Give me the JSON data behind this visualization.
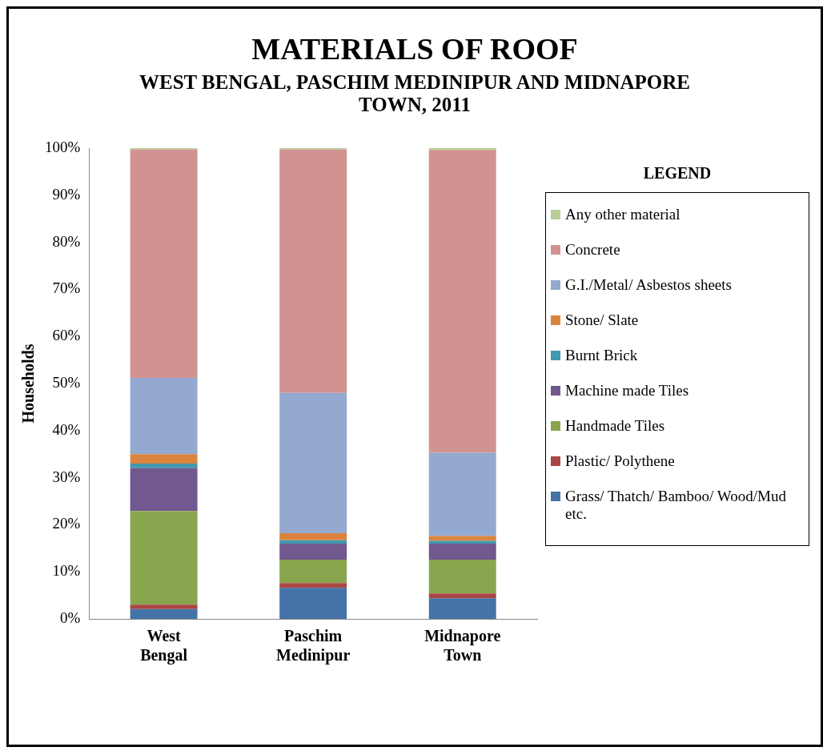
{
  "chart_data": {
    "type": "bar",
    "title": "MATERIALS OF ROOF",
    "subtitle": "WEST BENGAL, PASCHIM MEDINIPUR  AND MIDNAPORE TOWN, 2011",
    "ylabel": "Households",
    "legend_title": "LEGEND",
    "categories": [
      "West Bengal",
      "Paschim Medinipur",
      "Midnapore Town"
    ],
    "stacked": true,
    "ylim": [
      0,
      100
    ],
    "yticks": [
      {
        "value": 0,
        "label": "0%"
      },
      {
        "value": 10,
        "label": "10%"
      },
      {
        "value": 20,
        "label": "20%"
      },
      {
        "value": 30,
        "label": "30%"
      },
      {
        "value": 40,
        "label": "40%"
      },
      {
        "value": 50,
        "label": "50%"
      },
      {
        "value": 60,
        "label": "60%"
      },
      {
        "value": 70,
        "label": "70%"
      },
      {
        "value": 80,
        "label": "80%"
      },
      {
        "value": 90,
        "label": "90%"
      },
      {
        "value": 100,
        "label": "100%"
      }
    ],
    "grid": false,
    "legend": "right",
    "series": [
      {
        "name": "Grass/ Thatch/ Bamboo/ Wood/Mud etc.",
        "color": "#4572a7",
        "values": [
          2.1,
          6.6,
          4.4
        ]
      },
      {
        "name": "Plastic/ Polythene",
        "color": "#aa4643",
        "values": [
          0.9,
          1.0,
          1.0
        ]
      },
      {
        "name": "Handmade Tiles",
        "color": "#89a54e",
        "values": [
          19.9,
          5.0,
          7.2
        ]
      },
      {
        "name": "Machine made Tiles",
        "color": "#71588f",
        "values": [
          9.1,
          3.4,
          3.4
        ]
      },
      {
        "name": "Burnt Brick",
        "color": "#4198af",
        "values": [
          1.0,
          0.7,
          0.6
        ]
      },
      {
        "name": "Stone/ Slate",
        "color": "#db843d",
        "values": [
          2.0,
          1.5,
          1.0
        ]
      },
      {
        "name": "G.I./Metal/ Asbestos sheets",
        "color": "#93a9cf",
        "values": [
          16.2,
          29.8,
          17.7
        ]
      },
      {
        "name": "Concrete",
        "color": "#d19392",
        "values": [
          48.5,
          51.7,
          64.3
        ]
      },
      {
        "name": "Any other material",
        "color": "#b9cd96",
        "values": [
          0.3,
          0.3,
          0.4
        ]
      }
    ]
  }
}
